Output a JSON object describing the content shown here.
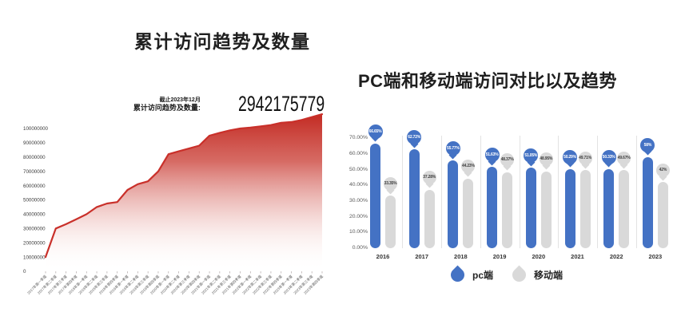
{
  "page": {
    "background": "#ffffff"
  },
  "left_chart": {
    "title": "累计访问趋势及数量",
    "annotation": {
      "as_of": "截止2023年12月",
      "label": "累计访问趋势及数量:",
      "value": "2942175779"
    }
  },
  "right_chart": {
    "title": "PC端和移动端访问对比以及趋势",
    "legend": [
      {
        "label": "pc端",
        "color": "#4472c4"
      },
      {
        "label": "移动端",
        "color": "#d9d9d9"
      }
    ]
  },
  "chart_data": [
    {
      "type": "area",
      "title": "累计访问趋势及数量",
      "xlabel": "",
      "ylabel": "",
      "grid": false,
      "legend_position": "none",
      "line_color": "#c9302a",
      "fill_style": "red-to-white vertical gradient",
      "ylim": [
        0,
        100000000
      ],
      "yticks": [
        0,
        10000000,
        20000000,
        30000000,
        40000000,
        50000000,
        60000000,
        70000000,
        80000000,
        90000000,
        100000000
      ],
      "x": [
        "2017年第一季度",
        "2017年第二季度",
        "2017年第三季度",
        "2017年第四季度",
        "2018年第一季度",
        "2018年第二季度",
        "2018年第三季度",
        "2018年第四季度",
        "2019年第一季度",
        "2019年第二季度",
        "2019年第三季度",
        "2019年第四季度",
        "2020年第一季度",
        "2020年第二季度",
        "2020年第三季度",
        "2020年第四季度",
        "2021年第一季度",
        "2021年第二季度",
        "2021年第三季度",
        "2021年第四季度",
        "2022年第一季度",
        "2022年第二季度",
        "2022年第三季度",
        "2022年第四季度",
        "2023年第一季度",
        "2023年第二季度",
        "2023年第三季度",
        "2023年第四季度"
      ],
      "values": [
        10000000,
        30000000,
        33000000,
        36500000,
        40000000,
        45000000,
        47500000,
        48500000,
        57000000,
        61000000,
        63000000,
        70000000,
        82000000,
        84000000,
        86000000,
        88000000,
        95000000,
        97000000,
        98700000,
        100000000,
        100600000,
        101500000,
        102400000,
        104000000,
        104500000,
        106000000,
        108000000,
        110000000
      ],
      "annotation_value": 2942175779
    },
    {
      "type": "bar",
      "title": "PC端和移动端访问对比以及趋势",
      "xlabel": "",
      "ylabel": "",
      "grid": false,
      "legend_position": "bottom",
      "ylim": [
        0,
        70
      ],
      "ytick_labels": [
        "0.00%",
        "10.00%",
        "20.00%",
        "30.00%",
        "40.00%",
        "50.00%",
        "60.00%",
        "70.00%"
      ],
      "categories": [
        "2016",
        "2017",
        "2018",
        "2019",
        "2020",
        "2021",
        "2022",
        "2023"
      ],
      "series": [
        {
          "name": "pc端",
          "color": "#4472c4",
          "label_text_color": "#ffffff",
          "values": [
            66.65,
            62.72,
            55.77,
            51.63,
            51.05,
            50.29,
            50.33,
            58
          ],
          "labels": [
            "66.65%",
            "62.72%",
            "55.77%",
            "51.63%",
            "51.05%",
            "50.29%",
            "50.33%",
            "58%"
          ]
        },
        {
          "name": "移动端",
          "color": "#d9d9d9",
          "label_text_color": "#3f3f3f",
          "values": [
            33.35,
            37.28,
            44.23,
            48.37,
            48.95,
            49.71,
            49.67,
            42
          ],
          "labels": [
            "33.35%",
            "37.28%",
            "44.23%",
            "48.37%",
            "48.95%",
            "49.71%",
            "49.67%",
            "42%"
          ]
        }
      ]
    }
  ]
}
